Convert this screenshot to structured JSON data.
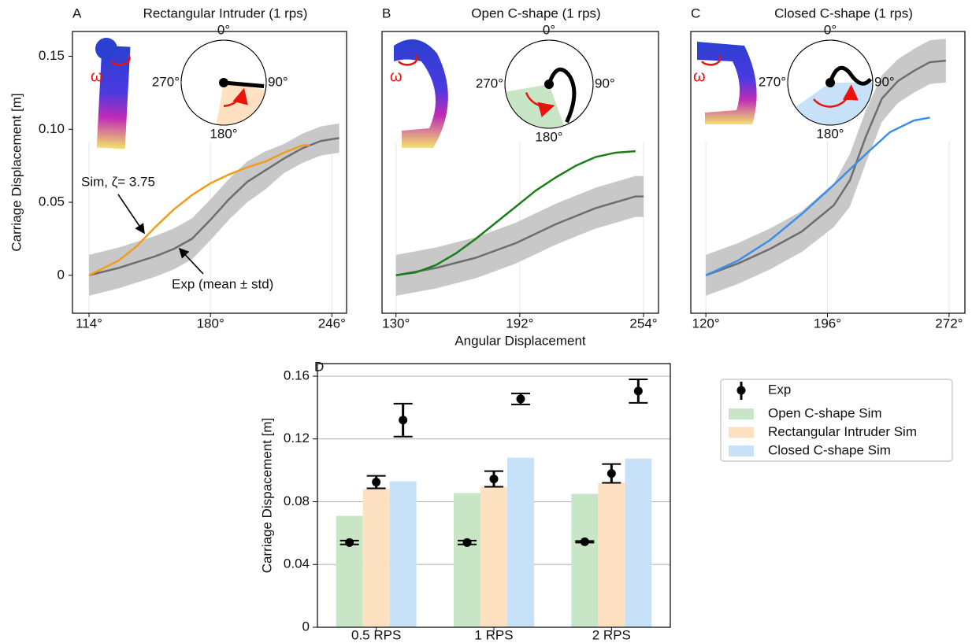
{
  "chart_data": [
    {
      "type": "line",
      "panel": "A",
      "title": "Rectangular Intruder (1 rps)",
      "ylabel": "Carriage Displacement [m]",
      "xlim": [
        105,
        254
      ],
      "xticks": [
        {
          "value": 114,
          "label": "114°"
        },
        {
          "value": 180,
          "label": "180°"
        },
        {
          "value": 246,
          "label": "246°"
        }
      ],
      "ylim": [
        -0.026,
        0.167
      ],
      "yticks": [
        0,
        0.05,
        {
          "value": 0.1,
          "label": "0.10"
        },
        0.15
      ],
      "grid": true,
      "series": [
        {
          "color": "#6e6e6e",
          "band_color": "#c8c8c8",
          "x": [
            114,
            130,
            140,
            150,
            160,
            170,
            180,
            190,
            200,
            210,
            220,
            230,
            240,
            250
          ],
          "values": [
            0.0,
            0.005,
            0.009,
            0.013,
            0.018,
            0.025,
            0.038,
            0.052,
            0.064,
            0.072,
            0.08,
            0.087,
            0.092,
            0.094
          ],
          "std": [
            0.014,
            0.014,
            0.014,
            0.014,
            0.014,
            0.014,
            0.014,
            0.014,
            0.014,
            0.013,
            0.01,
            0.01,
            0.01,
            0.01
          ]
        },
        {
          "color": "#f39c1a",
          "x": [
            114,
            130,
            140,
            150,
            160,
            170,
            180,
            190,
            200,
            210,
            220,
            230,
            234
          ],
          "values": [
            0.0,
            0.01,
            0.02,
            0.033,
            0.045,
            0.055,
            0.063,
            0.069,
            0.074,
            0.078,
            0.084,
            0.089,
            0.089
          ]
        }
      ],
      "annotations": [
        "Sim, ζ= 3.75",
        "Exp (mean ± std)"
      ],
      "dial_labels": [
        "0°",
        "90°",
        "180°",
        "270°"
      ],
      "omega": "ω"
    },
    {
      "type": "line",
      "panel": "B",
      "title": "Open C-shape (1 rps)",
      "xlabel": "Angular Displacement",
      "xlim": [
        123,
        261.5
      ],
      "xticks": [
        {
          "value": 130,
          "label": "130°"
        },
        {
          "value": 192,
          "label": "192°"
        },
        {
          "value": 254,
          "label": "254°"
        }
      ],
      "ylim": [
        -0.026,
        0.167
      ],
      "grid": true,
      "series": [
        {
          "color": "#6e6e6e",
          "band_color": "#c8c8c8",
          "x": [
            130,
            150,
            170,
            190,
            210,
            230,
            250,
            254
          ],
          "values": [
            0.0,
            0.005,
            0.012,
            0.022,
            0.035,
            0.046,
            0.054,
            0.054
          ],
          "std": [
            0.014,
            0.014,
            0.014,
            0.014,
            0.014,
            0.014,
            0.014,
            0.014
          ]
        },
        {
          "color": "#1a7f1a",
          "x": [
            130,
            140,
            150,
            160,
            170,
            180,
            190,
            200,
            210,
            220,
            230,
            240,
            250
          ],
          "values": [
            0.0,
            0.002,
            0.007,
            0.015,
            0.025,
            0.036,
            0.047,
            0.058,
            0.067,
            0.075,
            0.081,
            0.084,
            0.085
          ]
        }
      ],
      "dial_labels": [
        "0°",
        "90°",
        "180°",
        "270°"
      ],
      "omega": "ω"
    },
    {
      "type": "line",
      "panel": "C",
      "title": "Closed C-shape (1 rps)",
      "xlim": [
        110.6,
        281.9
      ],
      "xticks": [
        {
          "value": 120,
          "label": "120°"
        },
        {
          "value": 196,
          "label": "196°"
        },
        {
          "value": 272,
          "label": "272°"
        }
      ],
      "ylim": [
        -0.026,
        0.167
      ],
      "grid": true,
      "series": [
        {
          "color": "#6e6e6e",
          "band_color": "#c8c8c8",
          "x": [
            120,
            140,
            160,
            180,
            200,
            210,
            220,
            230,
            240,
            250,
            260,
            270
          ],
          "values": [
            0.0,
            0.008,
            0.018,
            0.03,
            0.048,
            0.065,
            0.095,
            0.121,
            0.133,
            0.14,
            0.146,
            0.147
          ],
          "std": [
            0.014,
            0.014,
            0.014,
            0.014,
            0.015,
            0.018,
            0.018,
            0.016,
            0.015,
            0.015,
            0.015,
            0.015
          ]
        },
        {
          "color": "#3a8fe8",
          "x": [
            120,
            140,
            160,
            180,
            200,
            220,
            235,
            250,
            260
          ],
          "values": [
            0.0,
            0.01,
            0.024,
            0.042,
            0.062,
            0.083,
            0.098,
            0.106,
            0.108
          ]
        }
      ],
      "dial_labels": [
        "0°",
        "90°",
        "180°",
        "270°"
      ],
      "omega": "ω"
    },
    {
      "type": "bar",
      "panel": "D",
      "ylabel": "Carriage Dispacement [m]",
      "categories": [
        "0.5 RPS",
        "1 RPS",
        "2 RPS"
      ],
      "ylim": [
        0,
        0.168
      ],
      "yticks": [
        0,
        0.04,
        0.08,
        0.12,
        0.16
      ],
      "grid": true,
      "legend": "right",
      "series": [
        {
          "name": "Open C-shape Sim",
          "color": "#c8e6c6",
          "values": [
            0.071,
            0.0855,
            0.085
          ]
        },
        {
          "name": "Rectangular Intruder Sim",
          "color": "#fde1c0",
          "values": [
            0.088,
            0.0895,
            0.092
          ]
        },
        {
          "name": "Closed C-shape Sim",
          "color": "#c7e1f8",
          "values": [
            0.093,
            0.108,
            0.1075
          ]
        }
      ],
      "exp": {
        "name": "Exp",
        "color": "#000000",
        "values": [
          [
            0.054,
            0.0925,
            0.132
          ],
          [
            0.054,
            0.0945,
            0.1455
          ],
          [
            0.0545,
            0.098,
            0.1505
          ]
        ],
        "errors": [
          [
            0.0012,
            0.004,
            0.0105
          ],
          [
            0.0012,
            0.005,
            0.0035
          ],
          [
            0.0005,
            0.006,
            0.0075
          ]
        ]
      }
    }
  ]
}
